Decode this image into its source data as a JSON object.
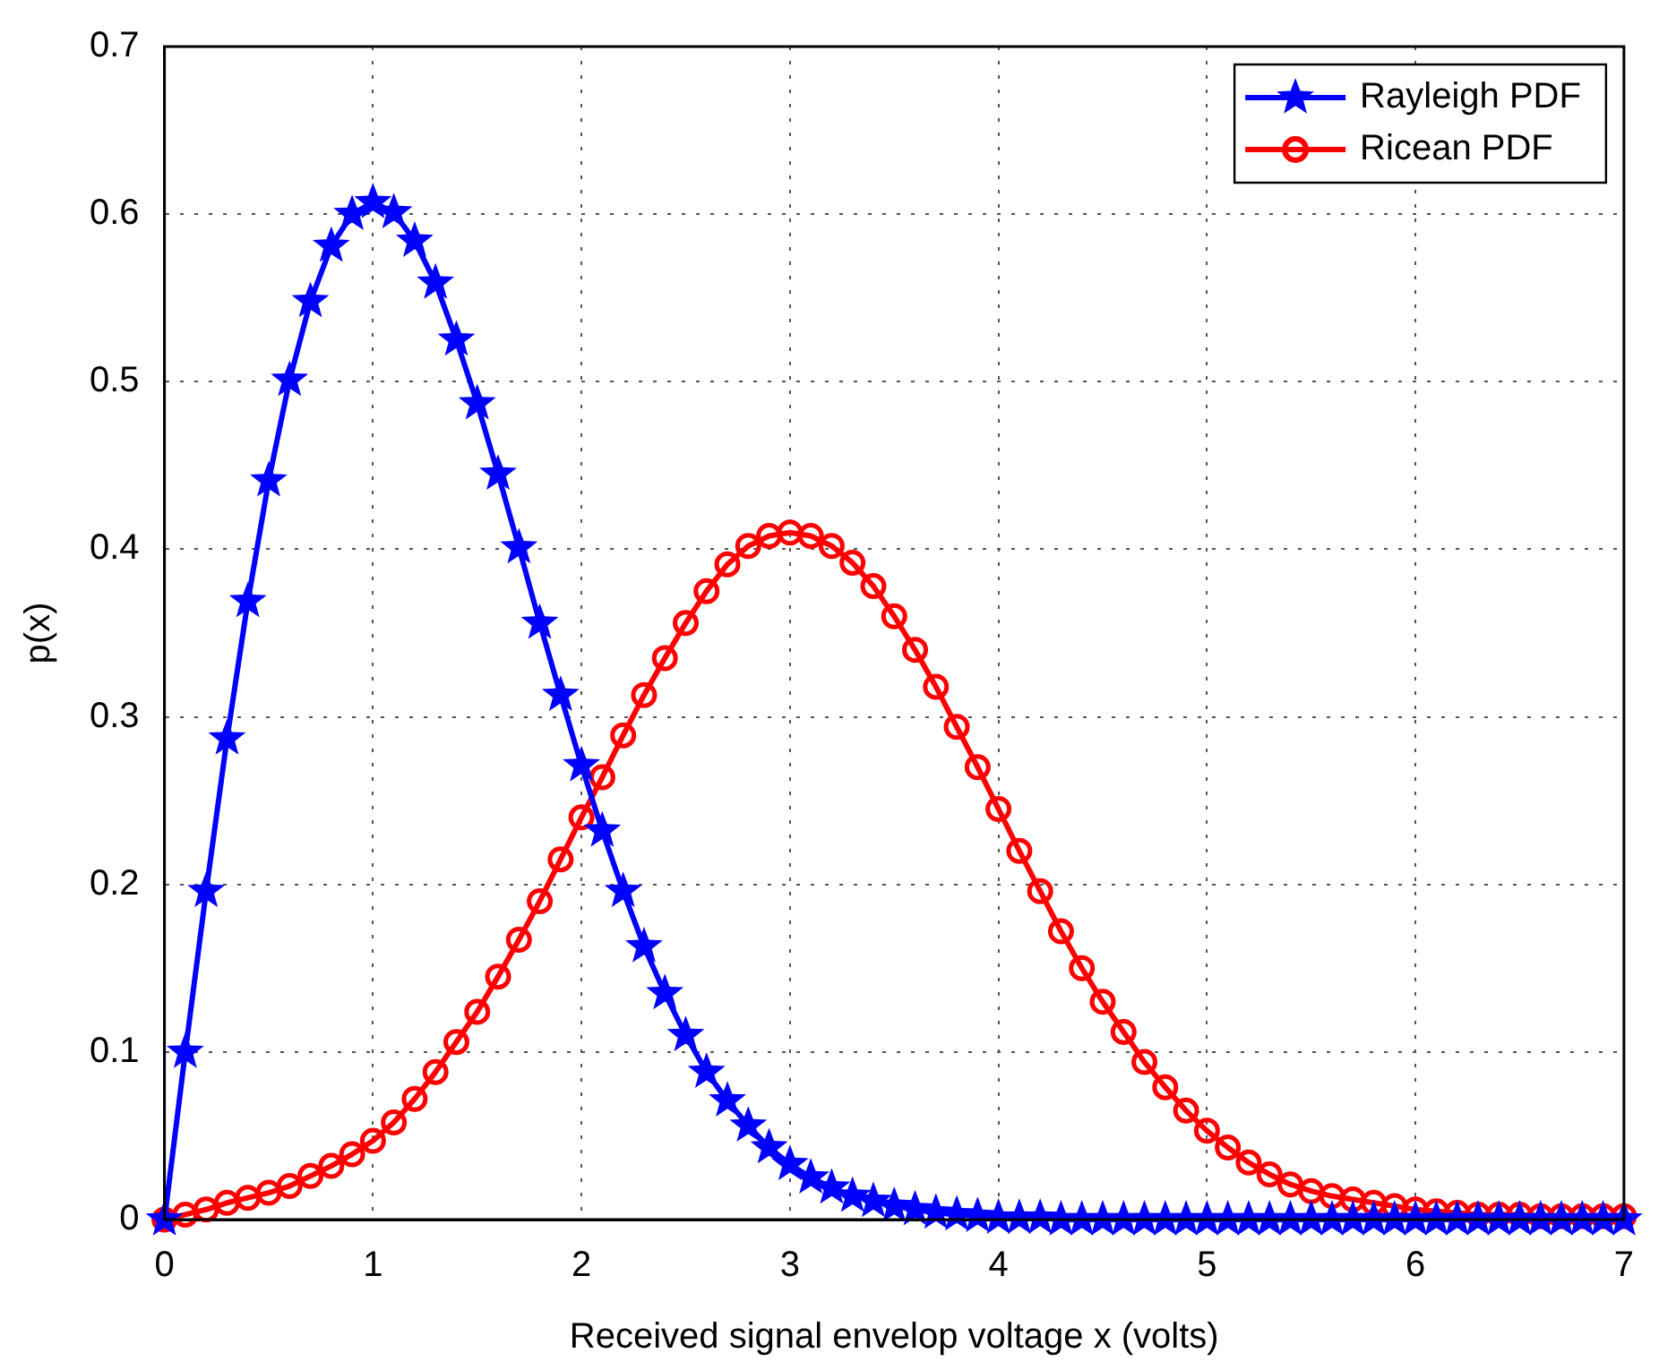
{
  "chart_data": {
    "type": "line",
    "xlabel": "Received signal envelop voltage x (volts)",
    "ylabel": "p(x)",
    "x": [
      0,
      0.1,
      0.2,
      0.3,
      0.4,
      0.5,
      0.6,
      0.7,
      0.8,
      0.9,
      1,
      1.1,
      1.2,
      1.3,
      1.4,
      1.5,
      1.6,
      1.7,
      1.8,
      1.9,
      2,
      2.1,
      2.2,
      2.3,
      2.4,
      2.5,
      2.6,
      2.7,
      2.8,
      2.9,
      3,
      3.1,
      3.2,
      3.3,
      3.4,
      3.5,
      3.6,
      3.7,
      3.8,
      3.9,
      4,
      4.1,
      4.2,
      4.3,
      4.4,
      4.5,
      4.6,
      4.7,
      4.8,
      4.9,
      5,
      5.1,
      5.2,
      5.3,
      5.4,
      5.5,
      5.6,
      5.7,
      5.8,
      5.9,
      6,
      6.1,
      6.2,
      6.3,
      6.4,
      6.5,
      6.6,
      6.7,
      6.8,
      6.9,
      7
    ],
    "series": [
      {
        "name": "Rayleigh PDF",
        "color": "#0000ff",
        "marker": "star",
        "values": [
          0,
          0.1,
          0.196,
          0.287,
          0.369,
          0.441,
          0.501,
          0.548,
          0.581,
          0.6,
          0.607,
          0.601,
          0.584,
          0.559,
          0.525,
          0.487,
          0.445,
          0.401,
          0.356,
          0.313,
          0.271,
          0.232,
          0.196,
          0.163,
          0.135,
          0.11,
          0.088,
          0.071,
          0.056,
          0.043,
          0.033,
          0.025,
          0.019,
          0.014,
          0.011,
          0.008,
          0.006,
          0.004,
          0.003,
          0.002,
          0.001,
          0.001,
          0.001,
          0,
          0,
          0,
          0,
          0,
          0,
          0,
          0,
          0,
          0,
          0,
          0,
          0,
          0,
          0,
          0,
          0,
          0,
          0,
          0,
          0,
          0,
          0,
          0,
          0,
          0,
          0,
          0
        ]
      },
      {
        "name": "Ricean PDF",
        "color": "#ff0000",
        "marker": "circle",
        "values": [
          0,
          0.003,
          0.006,
          0.01,
          0.013,
          0.016,
          0.02,
          0.026,
          0.032,
          0.039,
          0.047,
          0.058,
          0.072,
          0.088,
          0.106,
          0.124,
          0.145,
          0.167,
          0.19,
          0.215,
          0.24,
          0.264,
          0.289,
          0.313,
          0.335,
          0.356,
          0.375,
          0.391,
          0.402,
          0.408,
          0.41,
          0.408,
          0.402,
          0.392,
          0.378,
          0.36,
          0.34,
          0.318,
          0.294,
          0.27,
          0.245,
          0.22,
          0.196,
          0.172,
          0.15,
          0.13,
          0.112,
          0.094,
          0.079,
          0.065,
          0.053,
          0.043,
          0.034,
          0.027,
          0.021,
          0.017,
          0.014,
          0.012,
          0.01,
          0.008,
          0.006,
          0.005,
          0.004,
          0.003,
          0.003,
          0.003,
          0.002,
          0.002,
          0.002,
          0.002,
          0.002
        ]
      }
    ],
    "xlim": [
      0,
      7
    ],
    "xticks": [
      0,
      1,
      2,
      3,
      4,
      5,
      6,
      7
    ],
    "ylim": [
      0,
      0.7
    ],
    "yticks": [
      0,
      0.1,
      0.2,
      0.3,
      0.4,
      0.5,
      0.6,
      0.7
    ],
    "grid": true,
    "legend": "top right",
    "line_style": "solid"
  }
}
